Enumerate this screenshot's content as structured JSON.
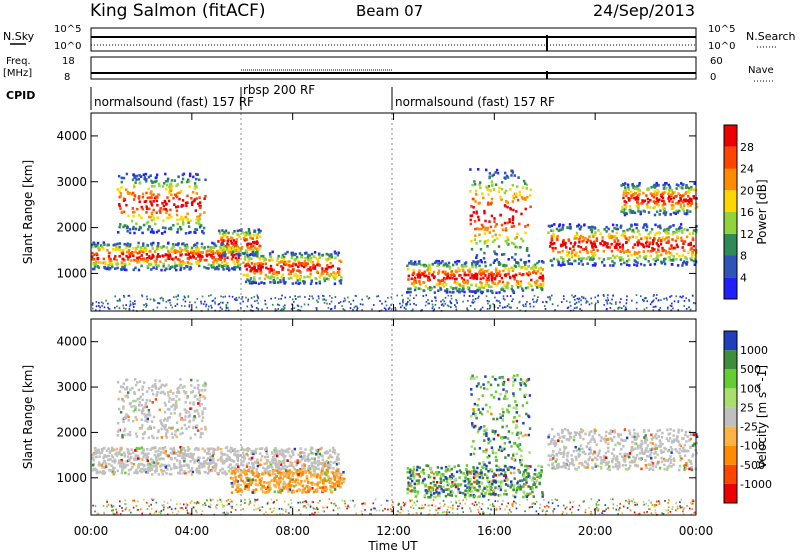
{
  "header": {
    "station": "King Salmon (fitACF)",
    "beam": "Beam 07",
    "date": "24/Sep/2013"
  },
  "strip_labels": {
    "nsky": "N.Sky",
    "nsky_hi": "10^5",
    "nsky_lo": "10^0",
    "freq": "Freq.",
    "freq_unit": "[MHz]",
    "freq_hi": "18",
    "freq_lo": "8",
    "cpid": "CPID",
    "nsearch": "N.Search",
    "nsearch_hi": "10^5",
    "nsearch_lo": "10^0",
    "nave": "Nave",
    "nave_hi": "60",
    "nave_lo": "0"
  },
  "cpid_segments": [
    {
      "label": "normalsound (fast) 157 RF"
    },
    {
      "label": "rbsp 200 RF"
    },
    {
      "label": "normalsound (fast) 157 RF"
    }
  ],
  "chart_data": [
    {
      "type": "heatmap",
      "name": "power",
      "xlabel": "",
      "ylabel": "Slant Range [km]",
      "xlim": [
        0,
        24
      ],
      "ylim": [
        180,
        4500
      ],
      "x_ticks": [
        "00:00",
        "04:00",
        "08:00",
        "12:00",
        "16:00",
        "20:00",
        "00:00"
      ],
      "y_ticks": [
        "1000",
        "2000",
        "3000",
        "4000"
      ],
      "colorbar": {
        "label": "Power [dB]",
        "ticks": [
          "4",
          "8",
          "12",
          "16",
          "20",
          "24",
          "28"
        ],
        "colors": [
          "#1f1fff",
          "#2f54b8",
          "#2e8b57",
          "#8fd43a",
          "#ffd700",
          "#ff8c00",
          "#ff4500",
          "#ee0000"
        ]
      },
      "bands": [
        {
          "t0": 0.0,
          "t1": 5.9,
          "r0": 1100,
          "r1": 1700
        },
        {
          "t0": 5.0,
          "t1": 6.7,
          "r0": 1400,
          "r1": 2000
        },
        {
          "t0": 6.0,
          "t1": 9.9,
          "r0": 800,
          "r1": 1500
        },
        {
          "t0": 1.0,
          "t1": 4.5,
          "r0": 1900,
          "r1": 3200
        },
        {
          "t0": 12.5,
          "t1": 17.9,
          "r0": 600,
          "r1": 1300
        },
        {
          "t0": 15.0,
          "t1": 17.4,
          "r0": 1300,
          "r1": 3300
        },
        {
          "t0": 18.1,
          "t1": 24.0,
          "r0": 1200,
          "r1": 2100
        },
        {
          "t0": 21.0,
          "t1": 24.0,
          "r0": 2300,
          "r1": 3000
        }
      ]
    },
    {
      "type": "heatmap",
      "name": "velocity",
      "xlabel": "Time UT",
      "ylabel": "Slant Range [km]",
      "xlim": [
        0,
        24
      ],
      "ylim": [
        180,
        4500
      ],
      "x_ticks": [
        "00:00",
        "04:00",
        "08:00",
        "12:00",
        "16:00",
        "20:00",
        "00:00"
      ],
      "y_ticks": [
        "1000",
        "2000",
        "3000",
        "4000"
      ],
      "colorbar": {
        "label": "Velocity [m s^-1]",
        "ticks": [
          "1000",
          "500",
          "100",
          "25",
          "-25",
          "-100",
          "-500",
          "-1000"
        ],
        "colors": [
          "#1f3fbf",
          "#3e8e3e",
          "#66cc33",
          "#a9df6f",
          "#c0c0c0",
          "#ffb347",
          "#ff8c00",
          "#ff4500",
          "#ee0000"
        ]
      },
      "bands": [
        {
          "t0": 0.0,
          "t1": 9.8,
          "r0": 1100,
          "r1": 1700
        },
        {
          "t0": 5.5,
          "t1": 10.0,
          "r0": 700,
          "r1": 1200
        },
        {
          "t0": 1.0,
          "t1": 4.5,
          "r0": 1900,
          "r1": 3200
        },
        {
          "t0": 12.5,
          "t1": 17.9,
          "r0": 600,
          "r1": 1300
        },
        {
          "t0": 15.0,
          "t1": 17.4,
          "r0": 1300,
          "r1": 3300
        },
        {
          "t0": 18.1,
          "t1": 24.0,
          "r0": 1200,
          "r1": 2100
        }
      ]
    }
  ]
}
